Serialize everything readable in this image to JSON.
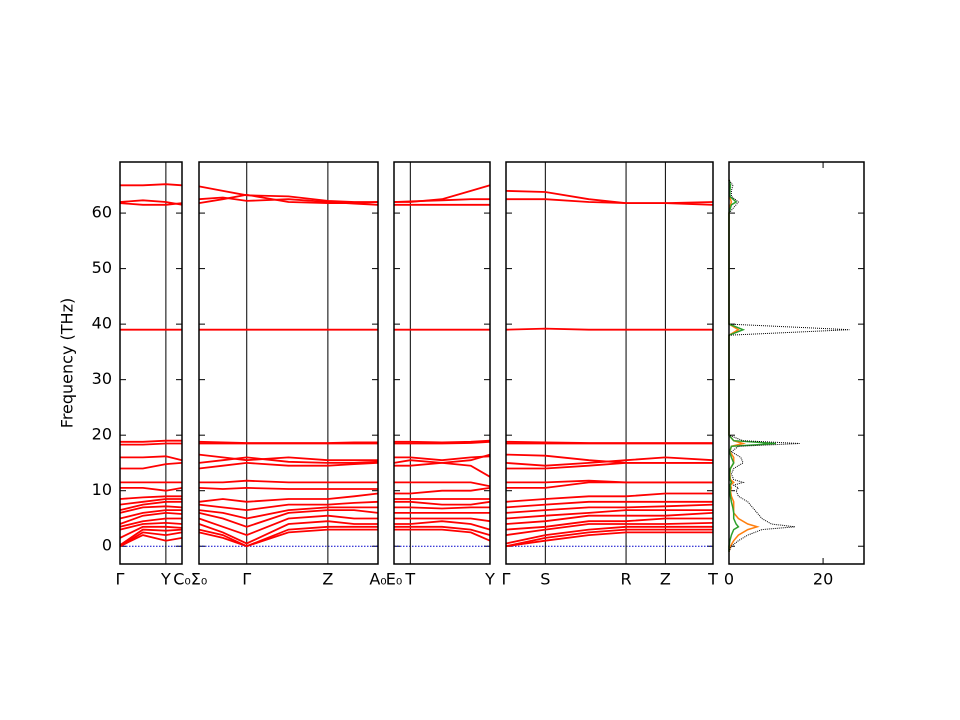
{
  "chart_data": {
    "type": "band_structure",
    "ylabel": "Frequency (THz)",
    "ylim": [
      -3.2,
      69.2
    ],
    "yticks": [
      0,
      10,
      20,
      30,
      40,
      50,
      60
    ],
    "band_color": "#ff0000",
    "zero_line": 0,
    "zero_line_color": "#0000cc",
    "panels": [
      {
        "xlim": [
          0,
          1
        ],
        "xticks": [
          {
            "value": 0,
            "label": "Γ"
          },
          {
            "value": 0.74,
            "label": "Y"
          },
          {
            "value": 1,
            "label": "C₀"
          }
        ],
        "x": [
          0,
          0.37,
          0.74,
          1
        ],
        "bands": [
          [
            0,
            2,
            1,
            1.5
          ],
          [
            0,
            2.5,
            2,
            2.5
          ],
          [
            0.2,
            3,
            2.8,
            3
          ],
          [
            1.5,
            3.5,
            3.5,
            3.3
          ],
          [
            3,
            4,
            4.2,
            4
          ],
          [
            3.5,
            4.5,
            5,
            5
          ],
          [
            4,
            5.5,
            6,
            5.8
          ],
          [
            5,
            6,
            6.5,
            6.5
          ],
          [
            6,
            7,
            7.2,
            7
          ],
          [
            6.5,
            7.5,
            8,
            8
          ],
          [
            7.5,
            8,
            8.5,
            8.5
          ],
          [
            8.5,
            8.8,
            9,
            9
          ],
          [
            10.5,
            10.5,
            10,
            10.5
          ],
          [
            11.5,
            11.5,
            11.5,
            11.5
          ],
          [
            14,
            14,
            14.8,
            15
          ],
          [
            16,
            16,
            16.2,
            15.5
          ],
          [
            18.3,
            18.3,
            18.5,
            18.5
          ],
          [
            18.8,
            18.8,
            19,
            19
          ],
          [
            39,
            39,
            39,
            39
          ],
          [
            61.8,
            61.5,
            61.5,
            61.8
          ],
          [
            62,
            62.3,
            62,
            61.5
          ],
          [
            65,
            65,
            65.2,
            65
          ]
        ]
      },
      {
        "xlim": [
          0,
          3
        ],
        "xticks": [
          {
            "value": 0,
            "label": "Σ₀"
          },
          {
            "value": 0.8,
            "label": "Γ"
          },
          {
            "value": 2.16,
            "label": "Z"
          },
          {
            "value": 3,
            "label": "A₀"
          }
        ],
        "x": [
          0,
          0.4,
          0.8,
          1.5,
          2.16,
          2.6,
          3
        ],
        "bands": [
          [
            3,
            2,
            0,
            2.5,
            3,
            3,
            3
          ],
          [
            2.5,
            1.5,
            0,
            3,
            3.5,
            3.5,
            3.5
          ],
          [
            4,
            2.5,
            0.5,
            4,
            4.5,
            4,
            4
          ],
          [
            5,
            3.5,
            2,
            5,
            5.5,
            5,
            5
          ],
          [
            6,
            5,
            3.5,
            6,
            6.5,
            6.5,
            6
          ],
          [
            6.5,
            6,
            5,
            6.5,
            7,
            7,
            7
          ],
          [
            7.5,
            7,
            6.5,
            7.5,
            7.5,
            7.8,
            8
          ],
          [
            8,
            8.5,
            8,
            8.5,
            8.5,
            9,
            9.5
          ],
          [
            10.5,
            10.3,
            10.5,
            10.3,
            10.3,
            10.3,
            10.3
          ],
          [
            11.5,
            11.5,
            11.8,
            11.5,
            11.5,
            11.5,
            11.5
          ],
          [
            14,
            14.5,
            15,
            14.5,
            14.5,
            14.8,
            15
          ],
          [
            15,
            15.5,
            16,
            15.2,
            15,
            15,
            15.2
          ],
          [
            16.5,
            16,
            15.5,
            16,
            15.5,
            15.5,
            15.5
          ],
          [
            18.5,
            18.5,
            18.5,
            18.5,
            18.5,
            18.5,
            18.5
          ],
          [
            18.8,
            18.7,
            18.6,
            18.6,
            18.6,
            18.7,
            18.7
          ],
          [
            39,
            39,
            39,
            39,
            39,
            39,
            39
          ],
          [
            61.8,
            62.5,
            63.3,
            62,
            61.8,
            61.8,
            62
          ],
          [
            62.5,
            62.8,
            62.2,
            62.5,
            62,
            61.7,
            61.5
          ],
          [
            64.8,
            64,
            63.2,
            63,
            62.2,
            62,
            62
          ]
        ]
      },
      {
        "xlim": [
          0,
          1
        ],
        "xticks": [
          {
            "value": 0,
            "label": "E₀"
          },
          {
            "value": 0.17,
            "label": "T"
          },
          {
            "value": 1,
            "label": "Y"
          }
        ],
        "x": [
          0,
          0.17,
          0.5,
          0.8,
          1
        ],
        "bands": [
          [
            3,
            3,
            3,
            2.5,
            1
          ],
          [
            3.5,
            3.5,
            3.5,
            3,
            2
          ],
          [
            4,
            4,
            4.5,
            4,
            3
          ],
          [
            5,
            5,
            5,
            5,
            4.5
          ],
          [
            6,
            6,
            6,
            6,
            6
          ],
          [
            7,
            7,
            6.8,
            7,
            7
          ],
          [
            8,
            8,
            7.5,
            7.5,
            8
          ],
          [
            8.5,
            8.5,
            8.5,
            8.5,
            8.5
          ],
          [
            9.5,
            9.5,
            10,
            10,
            10.5
          ],
          [
            11.5,
            11.5,
            11.5,
            11.5,
            10.8
          ],
          [
            14.5,
            14.5,
            15,
            15.5,
            16.5
          ],
          [
            15,
            15.5,
            15,
            14.5,
            12.5
          ],
          [
            16,
            16,
            15.5,
            16,
            16.2
          ],
          [
            18.5,
            18.5,
            18.5,
            18.6,
            18.8
          ],
          [
            18.8,
            18.8,
            18.7,
            18.8,
            19
          ],
          [
            39,
            39,
            39,
            39,
            39
          ],
          [
            61.5,
            61.5,
            61.5,
            61.5,
            61.5
          ],
          [
            62,
            62,
            62.5,
            64,
            65
          ],
          [
            62,
            62.1,
            62.3,
            62.5,
            62.5
          ]
        ]
      },
      {
        "xlim": [
          0,
          1
        ],
        "xticks": [
          {
            "value": 0,
            "label": "Γ"
          },
          {
            "value": 0.19,
            "label": "S"
          },
          {
            "value": 0.58,
            "label": "R"
          },
          {
            "value": 0.77,
            "label": "Z"
          },
          {
            "value": 1,
            "label": "T"
          }
        ],
        "x": [
          0,
          0.19,
          0.4,
          0.58,
          0.77,
          1
        ],
        "bands": [
          [
            0,
            1,
            2,
            2.5,
            2.5,
            2.5
          ],
          [
            0,
            1.5,
            2.5,
            3,
            3,
            3
          ],
          [
            0.5,
            2,
            3,
            3.5,
            3.5,
            3.5
          ],
          [
            2,
            3,
            4,
            4,
            4,
            4.2
          ],
          [
            3,
            3.5,
            4.5,
            4.5,
            5,
            5
          ],
          [
            4,
            4.5,
            5.5,
            5.5,
            5.5,
            6
          ],
          [
            5,
            5.5,
            6,
            6.5,
            6.5,
            6.5
          ],
          [
            6,
            6.5,
            7,
            7,
            7.2,
            7.5
          ],
          [
            7,
            7.5,
            8,
            8,
            8,
            8
          ],
          [
            8,
            8.5,
            9,
            9,
            9.5,
            9.5
          ],
          [
            10.5,
            10.5,
            11.5,
            11.5,
            11.5,
            11.5
          ],
          [
            11.5,
            11.5,
            11.8,
            11.5,
            11.5,
            11.5
          ],
          [
            14,
            14,
            14.5,
            15,
            15,
            15
          ],
          [
            15,
            14.5,
            15,
            15.5,
            16,
            15.5
          ],
          [
            16.5,
            16.3,
            15.5,
            15,
            15,
            15
          ],
          [
            18.5,
            18.5,
            18.5,
            18.5,
            18.5,
            18.5
          ],
          [
            18.8,
            18.7,
            18.6,
            18.6,
            18.6,
            18.6
          ],
          [
            39,
            39.2,
            39,
            39,
            39,
            39
          ],
          [
            62.5,
            62.5,
            62,
            61.8,
            61.8,
            61.5
          ],
          [
            64,
            63.8,
            62.5,
            61.8,
            61.8,
            62
          ]
        ]
      }
    ],
    "dos": {
      "xlim": [
        0,
        28.7
      ],
      "xticks": [
        0,
        20
      ],
      "y": [
        -1,
        0,
        1,
        2,
        3,
        3.5,
        4,
        5,
        6,
        7,
        8,
        9,
        10,
        10.5,
        11,
        11.5,
        12,
        13,
        14,
        15,
        16,
        17,
        18,
        18.5,
        19,
        20,
        38,
        39,
        40,
        60,
        61.5,
        62,
        63,
        64,
        65,
        66
      ],
      "series": [
        {
          "color": "#ff7f0e",
          "values": [
            0,
            0.3,
            1,
            2,
            4,
            6,
            4,
            2,
            1,
            1,
            1,
            0.5,
            0.3,
            0.5,
            0.3,
            1,
            0.3,
            0.2,
            0.3,
            1,
            1,
            0.2,
            0.5,
            3,
            1,
            0,
            0,
            2,
            0,
            0,
            0.3,
            0.5,
            0.1,
            0.1,
            0.2,
            0
          ]
        },
        {
          "color": "#2ca02c",
          "values": [
            0,
            0,
            0.2,
            0.5,
            1,
            2,
            1.5,
            1,
            1,
            0.8,
            0.5,
            0.3,
            0.2,
            0.3,
            0.2,
            0.5,
            0.2,
            0.1,
            0.3,
            1,
            0.5,
            0.1,
            0.5,
            10,
            1,
            0,
            0,
            3,
            0,
            0,
            0.5,
            1.5,
            0.2,
            0.2,
            0.3,
            0
          ]
        },
        {
          "color": "#000000",
          "dotted": true,
          "values": [
            0,
            0.5,
            2,
            4,
            7,
            14,
            9,
            7,
            6,
            5,
            4,
            2,
            1.5,
            2,
            1,
            3,
            1,
            0.5,
            1,
            3,
            2.5,
            0.5,
            2,
            15,
            3,
            0,
            0,
            25.6,
            0,
            0,
            1.5,
            2,
            0.5,
            0.5,
            0.8,
            0
          ]
        }
      ]
    }
  }
}
